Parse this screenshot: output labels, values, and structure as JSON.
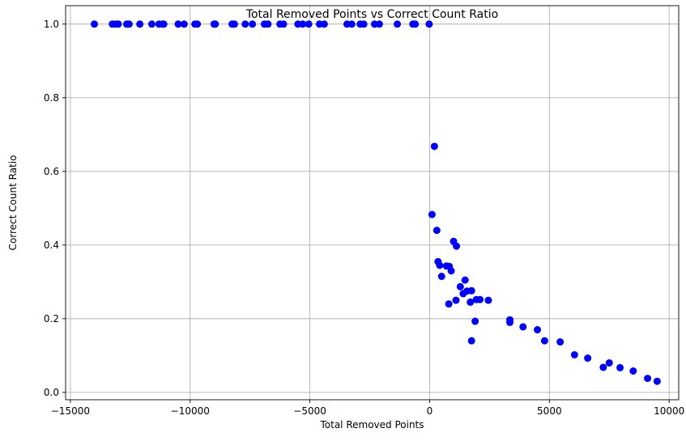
{
  "chart_data": {
    "type": "scatter",
    "title": "Total Removed Points vs Correct Count Ratio",
    "xlabel": "Total Removed Points",
    "ylabel": "Correct Count Ratio",
    "xlim": [
      -15200,
      10400
    ],
    "ylim": [
      -0.02,
      1.05
    ],
    "xticks": [
      -15000,
      -10000,
      -5000,
      0,
      5000,
      10000
    ],
    "xtick_labels": [
      "−15000",
      "−10000",
      "−5000",
      "0",
      "5000",
      "10000"
    ],
    "yticks": [
      0.0,
      0.2,
      0.4,
      0.6,
      0.8,
      1.0
    ],
    "ytick_labels": [
      "0.0",
      "0.2",
      "0.4",
      "0.6",
      "0.8",
      "1.0"
    ],
    "grid": true,
    "marker_color": "#0000ff",
    "points": [
      {
        "x": -14000,
        "y": 1.0
      },
      {
        "x": -13250,
        "y": 1.0
      },
      {
        "x": -13100,
        "y": 1.0
      },
      {
        "x": -13000,
        "y": 1.0
      },
      {
        "x": -12650,
        "y": 1.0
      },
      {
        "x": -12550,
        "y": 1.0
      },
      {
        "x": -12100,
        "y": 1.0
      },
      {
        "x": -11600,
        "y": 1.0
      },
      {
        "x": -11300,
        "y": 1.0
      },
      {
        "x": -11150,
        "y": 1.0
      },
      {
        "x": -11100,
        "y": 1.0
      },
      {
        "x": -10500,
        "y": 1.0
      },
      {
        "x": -10250,
        "y": 1.0
      },
      {
        "x": -9800,
        "y": 1.0
      },
      {
        "x": -9700,
        "y": 1.0
      },
      {
        "x": -9000,
        "y": 1.0
      },
      {
        "x": -8950,
        "y": 1.0
      },
      {
        "x": -8250,
        "y": 1.0
      },
      {
        "x": -8150,
        "y": 1.0
      },
      {
        "x": -7700,
        "y": 1.0
      },
      {
        "x": -7400,
        "y": 1.0
      },
      {
        "x": -6900,
        "y": 1.0
      },
      {
        "x": -6750,
        "y": 1.0
      },
      {
        "x": -6250,
        "y": 1.0
      },
      {
        "x": -6100,
        "y": 1.0
      },
      {
        "x": -5500,
        "y": 1.0
      },
      {
        "x": -5300,
        "y": 1.0
      },
      {
        "x": -5050,
        "y": 1.0
      },
      {
        "x": -4600,
        "y": 1.0
      },
      {
        "x": -4400,
        "y": 1.0
      },
      {
        "x": -3450,
        "y": 1.0
      },
      {
        "x": -3250,
        "y": 1.0
      },
      {
        "x": -2900,
        "y": 1.0
      },
      {
        "x": -2750,
        "y": 1.0
      },
      {
        "x": -2300,
        "y": 1.0
      },
      {
        "x": -2100,
        "y": 1.0
      },
      {
        "x": -1350,
        "y": 1.0
      },
      {
        "x": -700,
        "y": 1.0
      },
      {
        "x": -600,
        "y": 1.0
      },
      {
        "x": -20,
        "y": 1.0
      },
      {
        "x": 200,
        "y": 0.668
      },
      {
        "x": 100,
        "y": 0.483
      },
      {
        "x": 300,
        "y": 0.44
      },
      {
        "x": 350,
        "y": 0.355
      },
      {
        "x": 420,
        "y": 0.345
      },
      {
        "x": 500,
        "y": 0.315
      },
      {
        "x": 700,
        "y": 0.343
      },
      {
        "x": 820,
        "y": 0.342
      },
      {
        "x": 900,
        "y": 0.33
      },
      {
        "x": 1000,
        "y": 0.41
      },
      {
        "x": 1120,
        "y": 0.397
      },
      {
        "x": 800,
        "y": 0.24
      },
      {
        "x": 1100,
        "y": 0.25
      },
      {
        "x": 1280,
        "y": 0.287
      },
      {
        "x": 1400,
        "y": 0.268
      },
      {
        "x": 1480,
        "y": 0.305
      },
      {
        "x": 1560,
        "y": 0.275
      },
      {
        "x": 1700,
        "y": 0.245
      },
      {
        "x": 1750,
        "y": 0.276
      },
      {
        "x": 1750,
        "y": 0.14
      },
      {
        "x": 1900,
        "y": 0.193
      },
      {
        "x": 1950,
        "y": 0.252
      },
      {
        "x": 2100,
        "y": 0.252
      },
      {
        "x": 2450,
        "y": 0.25
      },
      {
        "x": 3350,
        "y": 0.197
      },
      {
        "x": 3350,
        "y": 0.19
      },
      {
        "x": 3900,
        "y": 0.178
      },
      {
        "x": 4500,
        "y": 0.17
      },
      {
        "x": 4800,
        "y": 0.14
      },
      {
        "x": 5450,
        "y": 0.137
      },
      {
        "x": 6050,
        "y": 0.102
      },
      {
        "x": 6600,
        "y": 0.093
      },
      {
        "x": 7250,
        "y": 0.068
      },
      {
        "x": 7500,
        "y": 0.08
      },
      {
        "x": 7950,
        "y": 0.067
      },
      {
        "x": 8500,
        "y": 0.058
      },
      {
        "x": 9100,
        "y": 0.038
      },
      {
        "x": 9500,
        "y": 0.03
      }
    ]
  }
}
